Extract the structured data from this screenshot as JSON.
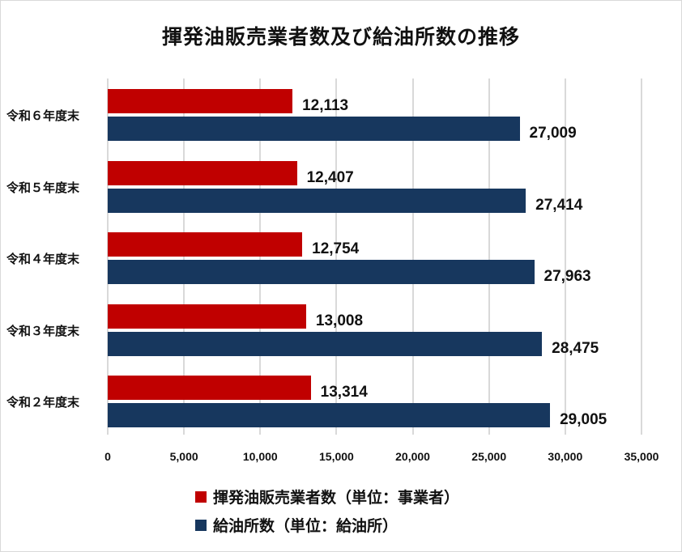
{
  "chart_data": {
    "type": "bar",
    "orientation": "horizontal",
    "title": "揮発油販売業者数及び給油所数の推移",
    "categories": [
      "令和６年度末",
      "令和５年度末",
      "令和４年度末",
      "令和３年度末",
      "令和２年度末"
    ],
    "series": [
      {
        "name": "揮発油販売業者数（単位：事業者）",
        "color": "#c00000",
        "values": [
          12113,
          12407,
          12754,
          13008,
          13314
        ],
        "labels": [
          "12,113",
          "12,407",
          "12,754",
          "13,008",
          "13,314"
        ]
      },
      {
        "name": "給油所数（単位：給油所）",
        "color": "#17375e",
        "values": [
          27009,
          27414,
          27963,
          28475,
          29005
        ],
        "labels": [
          "27,009",
          "27,414",
          "27,963",
          "28,475",
          "29,005"
        ]
      }
    ],
    "xlabel": "",
    "ylabel": "",
    "xlim": [
      0,
      35000
    ],
    "xticks": [
      "0",
      "5,000",
      "10,000",
      "15,000",
      "20,000",
      "25,000",
      "30,000",
      "35,000"
    ],
    "grid": true,
    "legend_position": "bottom"
  }
}
